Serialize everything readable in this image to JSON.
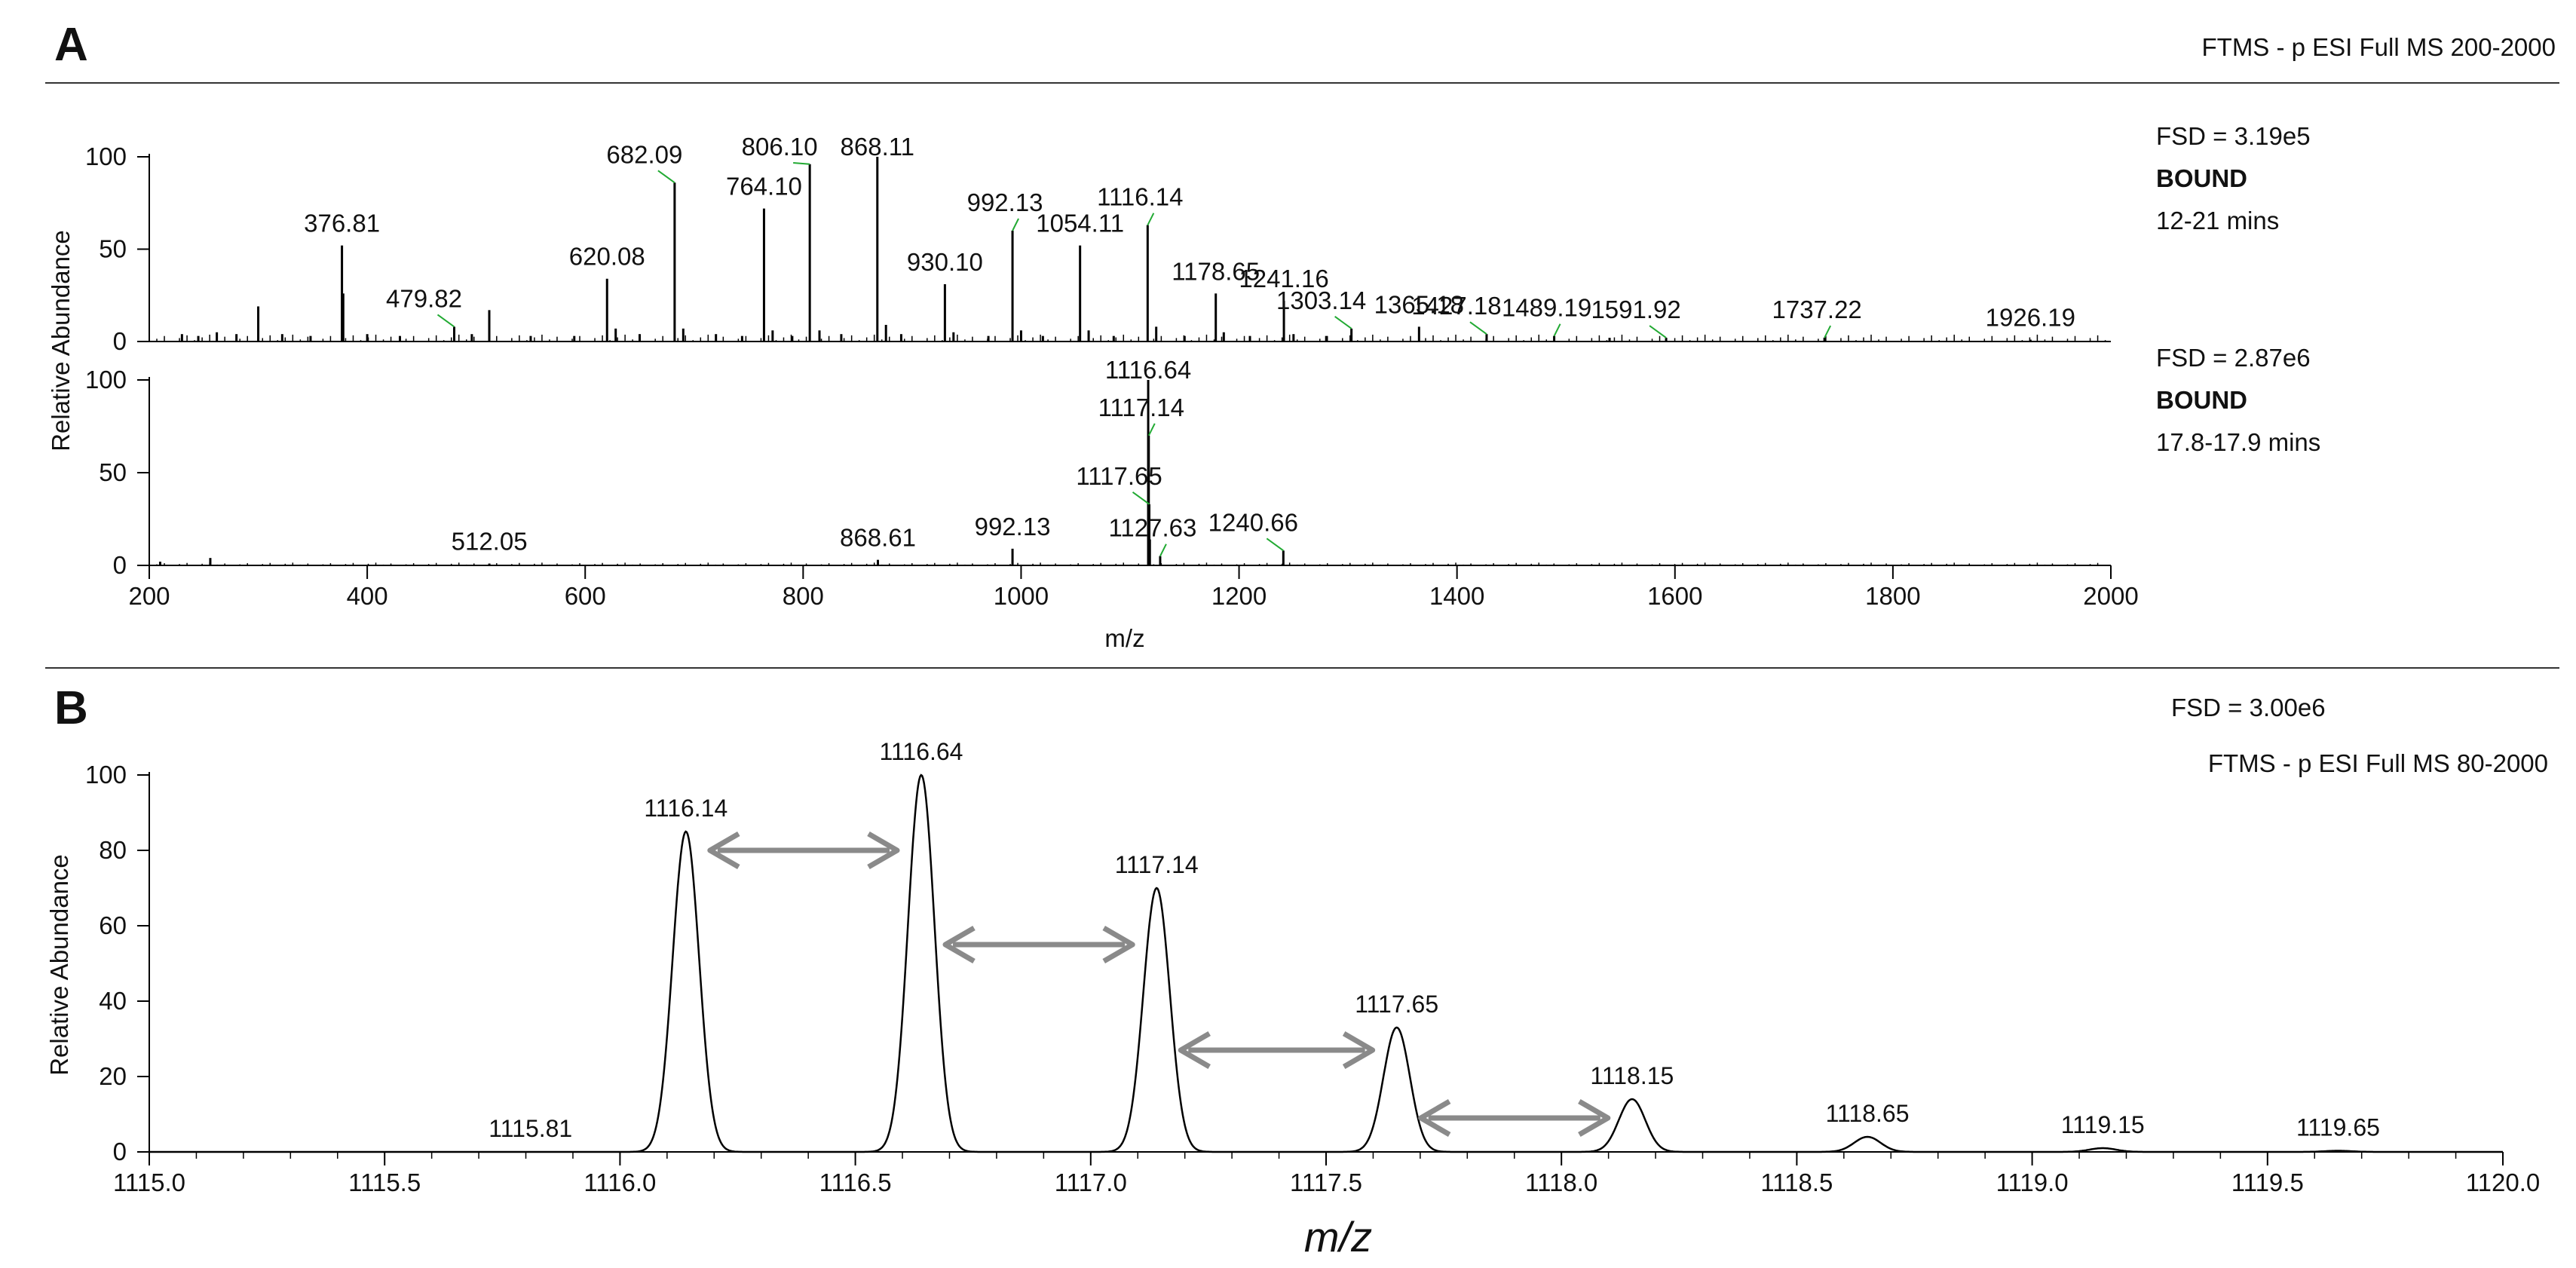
{
  "panel_a": {
    "label": "A",
    "header": "FTMS - p ESI Full MS 200-2000",
    "ylabel": "Relative Abundance",
    "xlabel": "m/z"
  },
  "panel_b": {
    "label": "B",
    "fsd": "FSD = 3.00e6",
    "header": "FTMS - p ESI Full MS 80-2000",
    "ylabel": "Relative Abundance",
    "xlabel": "m/z"
  },
  "colors": {
    "trace": "#000000",
    "leader": "#22aa33",
    "arrow": "#8a8a8a",
    "rule": "#333333"
  },
  "chart_data": [
    {
      "type": "line",
      "subtype": "mass-spectrum-sticks",
      "xlim": [
        200,
        2000
      ],
      "ylim": [
        0,
        100
      ],
      "xticks": [
        200,
        400,
        600,
        800,
        1000,
        1200,
        1400,
        1600,
        1800,
        2000
      ],
      "yticks": [
        0,
        50,
        100
      ],
      "info": [
        "FSD = 3.19e5",
        "BOUND",
        "12-21 mins"
      ],
      "peaks": [
        {
          "x": 230,
          "y": 4
        },
        {
          "x": 245,
          "y": 3
        },
        {
          "x": 262,
          "y": 5
        },
        {
          "x": 280,
          "y": 4
        },
        {
          "x": 300,
          "y": 19
        },
        {
          "x": 322,
          "y": 4
        },
        {
          "x": 348,
          "y": 3
        },
        {
          "x": 376.81,
          "y": 52
        },
        {
          "x": 378,
          "y": 26
        },
        {
          "x": 400,
          "y": 4
        },
        {
          "x": 430,
          "y": 3
        },
        {
          "x": 479.82,
          "y": 8
        },
        {
          "x": 496,
          "y": 4
        },
        {
          "x": 512,
          "y": 17
        },
        {
          "x": 550,
          "y": 3
        },
        {
          "x": 590,
          "y": 3
        },
        {
          "x": 620.08,
          "y": 34
        },
        {
          "x": 628,
          "y": 7
        },
        {
          "x": 650,
          "y": 4
        },
        {
          "x": 682.09,
          "y": 86
        },
        {
          "x": 690,
          "y": 7
        },
        {
          "x": 720,
          "y": 4
        },
        {
          "x": 744,
          "y": 3
        },
        {
          "x": 764.1,
          "y": 72
        },
        {
          "x": 772,
          "y": 6
        },
        {
          "x": 790,
          "y": 3
        },
        {
          "x": 806.1,
          "y": 96
        },
        {
          "x": 815,
          "y": 6
        },
        {
          "x": 835,
          "y": 4
        },
        {
          "x": 868.11,
          "y": 100
        },
        {
          "x": 876,
          "y": 9
        },
        {
          "x": 890,
          "y": 4
        },
        {
          "x": 930.1,
          "y": 31
        },
        {
          "x": 938,
          "y": 5
        },
        {
          "x": 970,
          "y": 3
        },
        {
          "x": 992.13,
          "y": 60
        },
        {
          "x": 1000,
          "y": 6
        },
        {
          "x": 1020,
          "y": 3
        },
        {
          "x": 1054.11,
          "y": 52
        },
        {
          "x": 1062,
          "y": 6
        },
        {
          "x": 1085,
          "y": 3
        },
        {
          "x": 1116.14,
          "y": 63
        },
        {
          "x": 1124,
          "y": 8
        },
        {
          "x": 1150,
          "y": 3
        },
        {
          "x": 1178.65,
          "y": 26
        },
        {
          "x": 1186,
          "y": 5
        },
        {
          "x": 1210,
          "y": 3
        },
        {
          "x": 1241.16,
          "y": 22
        },
        {
          "x": 1250,
          "y": 4
        },
        {
          "x": 1280,
          "y": 3
        },
        {
          "x": 1303.14,
          "y": 7
        },
        {
          "x": 1365.18,
          "y": 8
        },
        {
          "x": 1427.18,
          "y": 4
        },
        {
          "x": 1489.19,
          "y": 3
        },
        {
          "x": 1540,
          "y": 2
        },
        {
          "x": 1591.92,
          "y": 2
        },
        {
          "x": 1737.22,
          "y": 2
        },
        {
          "x": 1926.19,
          "y": 1
        }
      ],
      "labels": [
        {
          "text": "376.81",
          "x": 376.81,
          "y": 52
        },
        {
          "text": "479.82",
          "x": 479.82,
          "y": 8,
          "leader": true
        },
        {
          "text": "620.08",
          "x": 620.08,
          "y": 34
        },
        {
          "text": "682.09",
          "x": 682.09,
          "y": 86,
          "leader": true
        },
        {
          "text": "764.10",
          "x": 764.1,
          "y": 72
        },
        {
          "text": "806.10",
          "x": 806.1,
          "y": 96,
          "leader": true
        },
        {
          "text": "868.11",
          "x": 868.11,
          "y": 100
        },
        {
          "text": "930.10",
          "x": 930.1,
          "y": 31
        },
        {
          "text": "992.13",
          "x": 992.13,
          "y": 60,
          "leader": true
        },
        {
          "text": "1054.11",
          "x": 1054.11,
          "y": 52
        },
        {
          "text": "1116.14",
          "x": 1116.14,
          "y": 63,
          "leader": true
        },
        {
          "text": "1178.65",
          "x": 1178.65,
          "y": 26
        },
        {
          "text": "1241.16",
          "x": 1241.16,
          "y": 22
        },
        {
          "text": "1303.14",
          "x": 1303.14,
          "y": 7,
          "leader": true
        },
        {
          "text": "1365.18",
          "x": 1365.18,
          "y": 8
        },
        {
          "text": "1427.18",
          "x": 1427.18,
          "y": 4,
          "leader": true
        },
        {
          "text": "1489.19",
          "x": 1489.19,
          "y": 3,
          "leader": true
        },
        {
          "text": "1591.92",
          "x": 1591.92,
          "y": 2,
          "leader": true
        },
        {
          "text": "1737.22",
          "x": 1737.22,
          "y": 2,
          "leader": true
        },
        {
          "text": "1926.19",
          "x": 1926.19,
          "y": 1
        }
      ]
    },
    {
      "type": "line",
      "subtype": "mass-spectrum-sticks",
      "xlim": [
        200,
        2000
      ],
      "ylim": [
        0,
        100
      ],
      "xticks": [
        200,
        400,
        600,
        800,
        1000,
        1200,
        1400,
        1600,
        1800,
        2000
      ],
      "yticks": [
        0,
        50,
        100
      ],
      "info": [
        "FSD = 2.87e6",
        "BOUND",
        "17.8-17.9 mins"
      ],
      "peaks": [
        {
          "x": 210,
          "y": 2
        },
        {
          "x": 256,
          "y": 4
        },
        {
          "x": 512.05,
          "y": 1
        },
        {
          "x": 868.61,
          "y": 3
        },
        {
          "x": 992.13,
          "y": 9
        },
        {
          "x": 1116.64,
          "y": 100
        },
        {
          "x": 1117.14,
          "y": 70
        },
        {
          "x": 1117.65,
          "y": 33
        },
        {
          "x": 1118.15,
          "y": 14
        },
        {
          "x": 1127.63,
          "y": 5
        },
        {
          "x": 1240.66,
          "y": 8
        }
      ],
      "labels": [
        {
          "text": "512.05",
          "x": 512.05,
          "y": 1
        },
        {
          "text": "868.61",
          "x": 868.61,
          "y": 3
        },
        {
          "text": "992.13",
          "x": 992.13,
          "y": 9
        },
        {
          "text": "1116.64",
          "x": 1116.64,
          "y": 100
        },
        {
          "text": "1117.14",
          "x": 1117.14,
          "y": 70,
          "leader": true
        },
        {
          "text": "1117.65",
          "x": 1117.65,
          "y": 33,
          "leader": true
        },
        {
          "text": "1127.63",
          "x": 1127.63,
          "y": 5,
          "leader": true
        },
        {
          "text": "1240.66",
          "x": 1240.66,
          "y": 8,
          "leader": true
        }
      ]
    },
    {
      "type": "line",
      "subtype": "isotope-profile",
      "xlim": [
        1115.0,
        1120.0
      ],
      "ylim": [
        0,
        100
      ],
      "xticks": [
        "1115.0",
        "1115.5",
        "1116.0",
        "1116.5",
        "1117.0",
        "1117.5",
        "1118.0",
        "1118.5",
        "1119.0",
        "1119.5",
        "1120.0"
      ],
      "yticks": [
        0,
        20,
        40,
        60,
        80,
        100
      ],
      "peak_width": 0.028,
      "peaks": [
        {
          "x": 1116.14,
          "y": 85
        },
        {
          "x": 1116.64,
          "y": 100
        },
        {
          "x": 1117.14,
          "y": 70
        },
        {
          "x": 1117.65,
          "y": 33
        },
        {
          "x": 1118.15,
          "y": 14
        },
        {
          "x": 1118.65,
          "y": 4
        },
        {
          "x": 1119.15,
          "y": 1
        },
        {
          "x": 1119.65,
          "y": 0.3
        }
      ],
      "labels": [
        {
          "text": "1115.81",
          "x": 1115.81,
          "y": 0
        },
        {
          "text": "1116.14",
          "x": 1116.14,
          "y": 85
        },
        {
          "text": "1116.64",
          "x": 1116.64,
          "y": 100
        },
        {
          "text": "1117.14",
          "x": 1117.14,
          "y": 70
        },
        {
          "text": "1117.65",
          "x": 1117.65,
          "y": 33
        },
        {
          "text": "1118.15",
          "x": 1118.15,
          "y": 14
        },
        {
          "text": "1118.65",
          "x": 1118.65,
          "y": 4
        },
        {
          "text": "1119.15",
          "x": 1119.15,
          "y": 1
        },
        {
          "text": "1119.65",
          "x": 1119.65,
          "y": 0.3
        }
      ],
      "arrows": [
        {
          "from": 1116.14,
          "to": 1116.64,
          "y": 80
        },
        {
          "from": 1116.64,
          "to": 1117.14,
          "y": 55
        },
        {
          "from": 1117.14,
          "to": 1117.65,
          "y": 27
        },
        {
          "from": 1117.65,
          "to": 1118.15,
          "y": 9
        }
      ]
    }
  ]
}
